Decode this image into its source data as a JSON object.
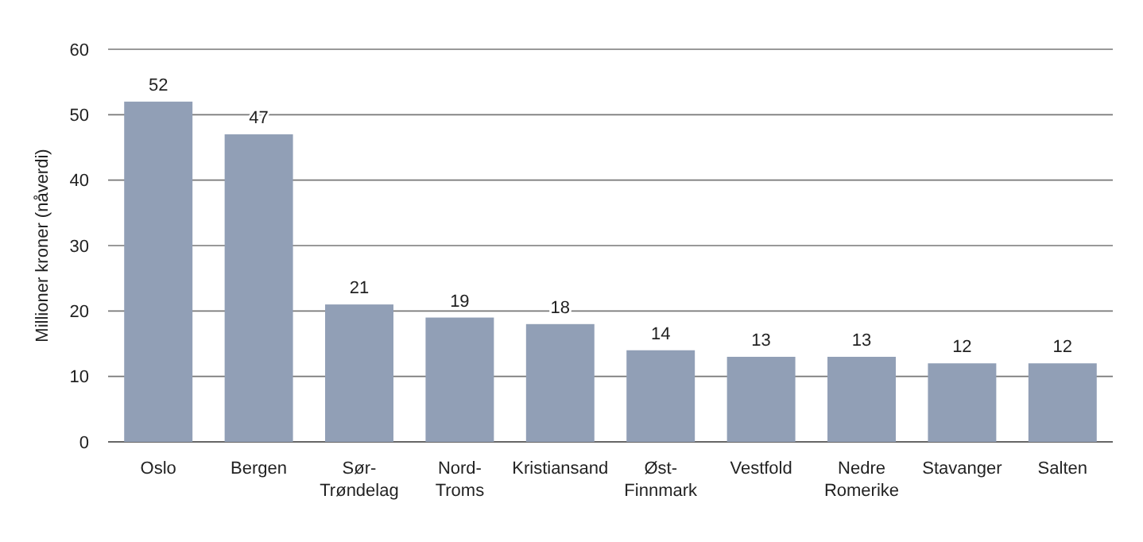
{
  "chart_data": {
    "type": "bar",
    "ylabel": "Millioner kroner (nåverdi)",
    "categories": [
      "Oslo",
      "Bergen",
      "Sør-Trøndelag",
      "Nord-Troms",
      "Kristiansand",
      "Øst-Finnmark",
      "Vestfold",
      "Nedre Romerike",
      "Stavanger",
      "Salten"
    ],
    "values": [
      52,
      47,
      21,
      19,
      18,
      14,
      13,
      13,
      12,
      12
    ],
    "color": "#919fb6",
    "ylim": [
      0,
      60
    ],
    "yticks": [
      0,
      10,
      20,
      30,
      40,
      50,
      60
    ],
    "grid": "y",
    "data_labels": true
  }
}
